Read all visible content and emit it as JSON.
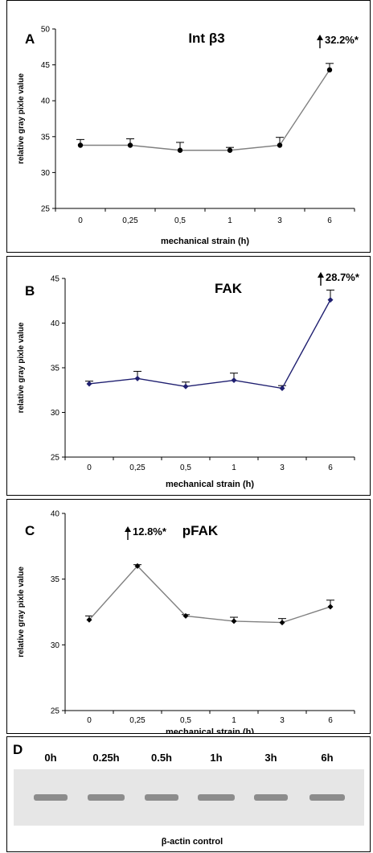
{
  "chart_data": [
    {
      "type": "line",
      "panel_label": "A",
      "title": "Int β3",
      "xlabel": "mechanical strain (h)",
      "ylabel": "relative gray pixle value",
      "categories": [
        "0",
        "0,25",
        "0,5",
        "1",
        "3",
        "6"
      ],
      "values": [
        33.8,
        33.8,
        33.1,
        33.1,
        33.8,
        44.3
      ],
      "errors": [
        0.8,
        0.9,
        1.1,
        0.4,
        1.1,
        0.9
      ],
      "ylim": [
        25,
        50
      ],
      "yticks": [
        "25",
        "30",
        "35",
        "40",
        "45",
        "50"
      ],
      "annotation": {
        "text": "32.2%*",
        "category_index": 5
      },
      "line_color": "#808080",
      "marker_color": "#000000",
      "grid": false
    },
    {
      "type": "line",
      "panel_label": "B",
      "title": "FAK",
      "xlabel": "mechanical strain (h)",
      "ylabel": "relative gray pixle value",
      "categories": [
        "0",
        "0,25",
        "0,5",
        "1",
        "3",
        "6"
      ],
      "values": [
        33.2,
        33.8,
        32.9,
        33.6,
        32.7,
        42.6
      ],
      "errors": [
        0.3,
        0.8,
        0.5,
        0.8,
        0.3,
        1.1
      ],
      "ylim": [
        25,
        45
      ],
      "yticks": [
        "25",
        "30",
        "35",
        "40",
        "45"
      ],
      "annotation": {
        "text": "28.7%*",
        "category_index": 5
      },
      "line_color": "#1f1f70",
      "marker_color": "#1f1f70",
      "grid": false
    },
    {
      "type": "line",
      "panel_label": "C",
      "title": "pFAK",
      "xlabel": "mechanical strain (h)",
      "ylabel": "relative gray pixle value",
      "categories": [
        "0",
        "0,25",
        "0,5",
        "1",
        "3",
        "6"
      ],
      "values": [
        31.9,
        36.0,
        32.2,
        31.8,
        31.7,
        32.9
      ],
      "errors": [
        0.3,
        0.1,
        0.1,
        0.3,
        0.3,
        0.5
      ],
      "ylim": [
        25,
        40
      ],
      "yticks": [
        "25",
        "30",
        "35",
        "40"
      ],
      "annotation": {
        "text": "12.8%*",
        "category_index": 1
      },
      "line_color": "#808080",
      "marker_color": "#000000",
      "grid": false
    }
  ],
  "blot": {
    "panel_label": "D",
    "lanes": [
      "0h",
      "0.25h",
      "0.5h",
      "1h",
      "3h",
      "6h"
    ],
    "caption": "β-actin control",
    "band_color": "#6e6e6e",
    "background_color": "#e6e6e6"
  }
}
